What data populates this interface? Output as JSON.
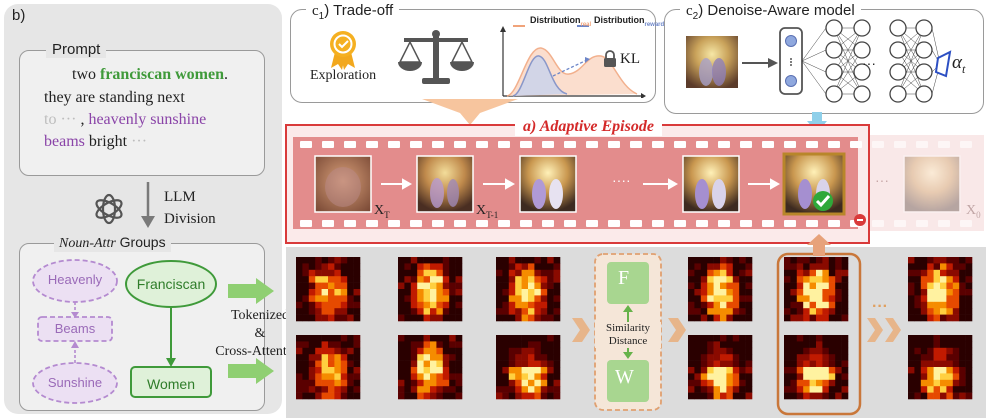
{
  "panel_b": {
    "label": "b)",
    "prompt_title": "Prompt",
    "prompt_lines": [
      {
        "pre": "two ",
        "green": "franciscan women",
        "post": "."
      },
      {
        "text": "they   are   standing   next"
      },
      {
        "faded": "to ···",
        "sep": " , ",
        "purple": "heavenly sunshine"
      },
      {
        "purple": "beams",
        "mid": " bright",
        "faded": " ···"
      }
    ],
    "llm_label_line1": "LLM",
    "llm_label_line2": "Division",
    "groups_title_italic": "Noun-Attr",
    "groups_title_rest": " Groups",
    "nodes": {
      "heavenly": "Heavenly",
      "beams": "Beams",
      "sunshine": "Sunshine",
      "franciscan": "Franciscan",
      "women": "Women"
    }
  },
  "tokenize_label": [
    "Tokenized",
    "&",
    "Cross-Attention"
  ],
  "c1": {
    "title_prefix": "c",
    "title_sub": "1",
    "title_rest": ")  Trade-off",
    "exploration": "Exploration",
    "legend_real": "Distribution",
    "legend_real_sub": "real",
    "legend_reward": "Distribution",
    "legend_reward_sub": "reward",
    "kl": "KL",
    "colors": {
      "real": "#f0a37a",
      "reward": "#6d86c8"
    }
  },
  "c2": {
    "title_prefix": "c",
    "title_sub": "2",
    "title_rest": ")  Denoise-Aware model",
    "alpha": "α",
    "alpha_sub": "t",
    "ellipsis": "···"
  },
  "episode": {
    "title": "a) Adaptive Episode",
    "labels": {
      "xT": "X",
      "xT_sub": "T",
      "xT1": "X",
      "xT1_sub": "T-1",
      "x0": "X",
      "x0_sub": "0"
    },
    "ellipsis": "····",
    "faded_ellipsis": "···",
    "colors": {
      "border": "#d93a3a",
      "band": "#e38c8c"
    }
  },
  "similarity": {
    "f": "F",
    "w": "W",
    "label_line1": "Similarity",
    "label_line2": "Distance"
  },
  "attn_ellipsis": "···"
}
